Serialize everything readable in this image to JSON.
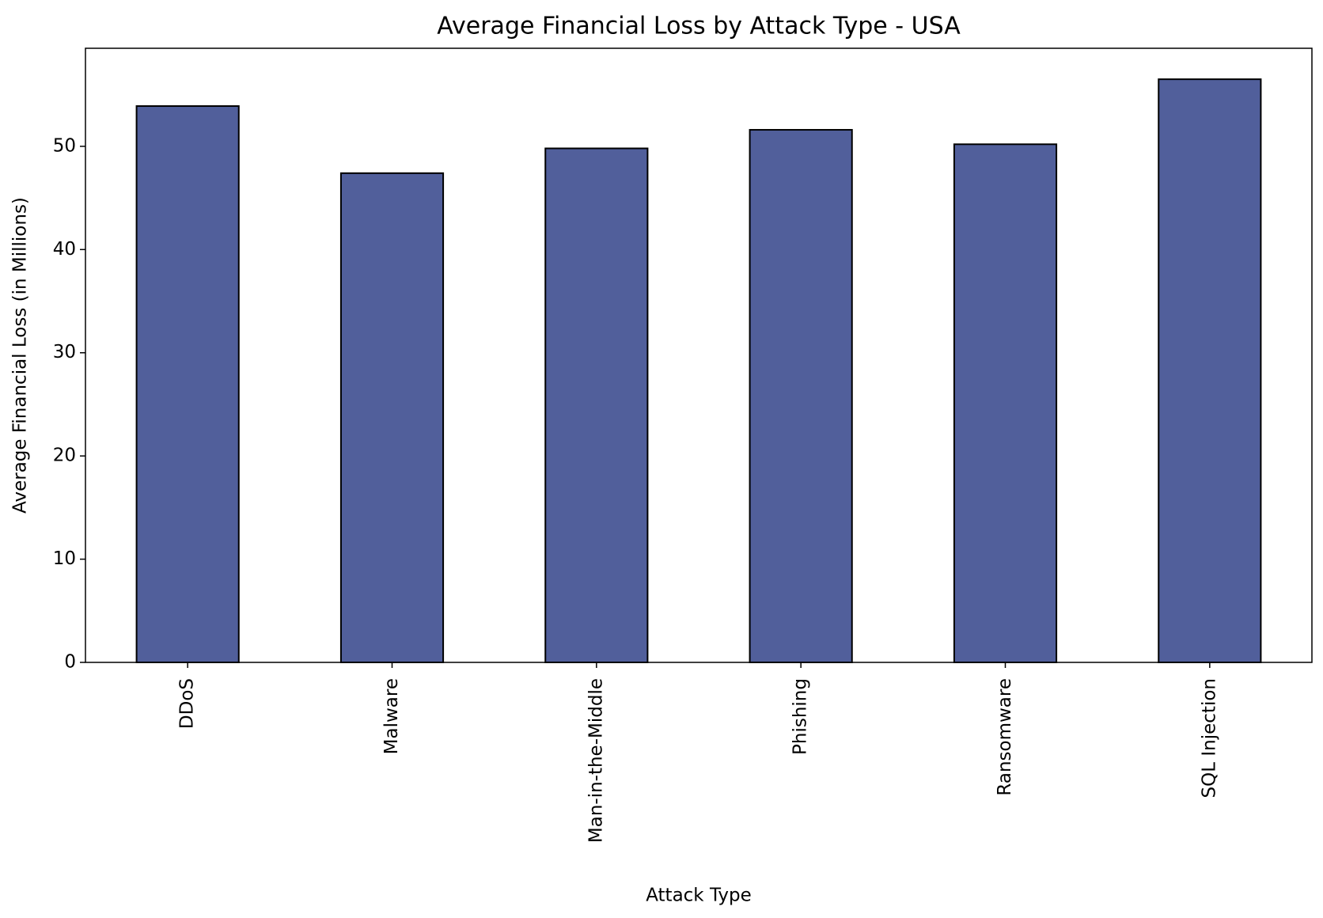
{
  "chart_data": {
    "type": "bar",
    "title": "Average Financial Loss by Attack Type - USA",
    "x_label": "Attack Type",
    "y_label": "Average Financial Loss (in Millions)",
    "categories": [
      "DDoS",
      "Malware",
      "Man-in-the-Middle",
      "Phishing",
      "Ransomware",
      "SQL Injection"
    ],
    "values": [
      53.9,
      47.4,
      49.8,
      51.6,
      50.2,
      56.5
    ],
    "color": "#515f9b",
    "ylim": [
      0,
      59.5
    ],
    "yticks": [
      0,
      10,
      20,
      30,
      40,
      50
    ],
    "grid": false
  }
}
